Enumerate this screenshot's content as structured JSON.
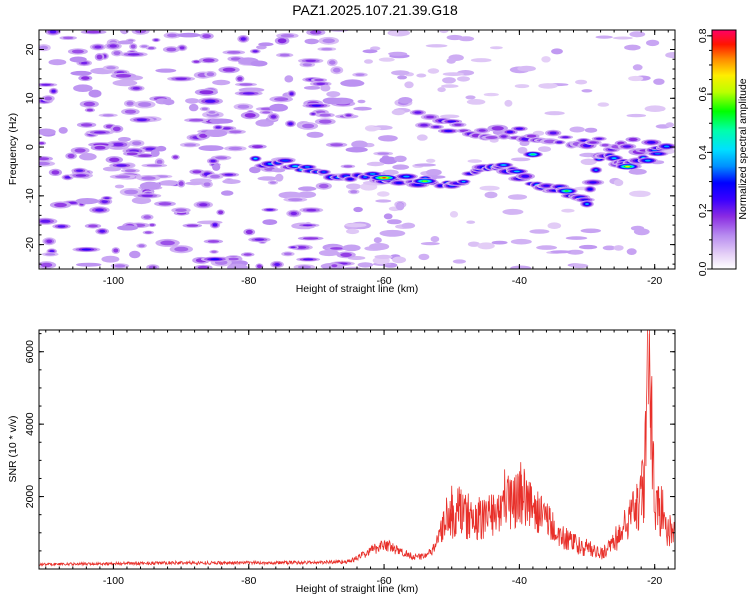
{
  "title": "PAZ1.2025.107.21.39.G18",
  "chart_data": [
    {
      "type": "heatmap",
      "xlabel": "Height of straight line (km)",
      "ylabel": "Frequency (Hz)",
      "xlim": [
        -111,
        -17
      ],
      "ylim": [
        -25,
        24
      ],
      "xticks": [
        -100,
        -80,
        -60,
        -40,
        -20
      ],
      "yticks": [
        -20,
        -10,
        0,
        10,
        20
      ],
      "colorbar": {
        "label": "Normalized spectral amplitude",
        "range": [
          0,
          0.82
        ],
        "ticks": [
          0.0,
          0.2,
          0.4,
          0.6,
          0.8
        ],
        "tick_labels": [
          "0.0",
          "0.2",
          "0.4",
          "0.6",
          "0.8"
        ],
        "colors": [
          "#ffffff",
          "#e6d2f7",
          "#b88cf0",
          "#8a2be2",
          "#4b00ff",
          "#0000ff",
          "#00bfff",
          "#00ffcc",
          "#00ff00",
          "#ccff00",
          "#ffff00",
          "#ff8800",
          "#ff0000",
          "#ff0066"
        ]
      },
      "ridge": {
        "description_points": [
          [
            -79,
            -3
          ],
          [
            -74,
            -3.5
          ],
          [
            -70,
            -5
          ],
          [
            -65,
            -6
          ],
          [
            -60,
            -6.3
          ],
          [
            -55,
            -7
          ],
          [
            -50,
            -7.3
          ],
          [
            -46,
            -5
          ],
          [
            -43,
            -4
          ],
          [
            -40,
            -6
          ],
          [
            -36,
            -8
          ],
          [
            -33,
            -9
          ],
          [
            -30,
            -11
          ],
          [
            -28,
            -2
          ],
          [
            -25,
            -3
          ],
          [
            -23,
            -4
          ],
          [
            -20,
            -1
          ],
          [
            -18,
            0
          ]
        ],
        "upper_branch": [
          [
            -55,
            6
          ],
          [
            -50,
            4
          ],
          [
            -45,
            3
          ],
          [
            -40,
            3
          ],
          [
            -35,
            2
          ],
          [
            -30,
            1
          ],
          [
            -25,
            0.5
          ],
          [
            -20,
            0
          ]
        ],
        "peak_points": [
          [
            -60,
            -6.3
          ],
          [
            -54,
            -7
          ],
          [
            -24,
            -4
          ],
          [
            -33,
            -9
          ],
          [
            -38,
            -1.5
          ]
        ]
      },
      "noise_region": [
        -111,
        -65
      ]
    },
    {
      "type": "line",
      "xlabel": "Height of straight line (km)",
      "ylabel": "SNR (10 * v/v)",
      "xlim": [
        -111,
        -17
      ],
      "ylim": [
        0,
        6600
      ],
      "xticks": [
        -100,
        -80,
        -60,
        -40,
        -20
      ],
      "yticks": [
        2000,
        4000,
        6000
      ],
      "color": "#e8302a",
      "envelope": [
        [
          -111,
          130
        ],
        [
          -100,
          150
        ],
        [
          -90,
          170
        ],
        [
          -80,
          170
        ],
        [
          -70,
          180
        ],
        [
          -65,
          210
        ],
        [
          -62,
          500
        ],
        [
          -60,
          700
        ],
        [
          -58,
          500
        ],
        [
          -55,
          320
        ],
        [
          -53,
          450
        ],
        [
          -51,
          1200
        ],
        [
          -49,
          1600
        ],
        [
          -47,
          1300
        ],
        [
          -45,
          1400
        ],
        [
          -43,
          1700
        ],
        [
          -41,
          1900
        ],
        [
          -39.5,
          2100
        ],
        [
          -38,
          1700
        ],
        [
          -36,
          1300
        ],
        [
          -34,
          900
        ],
        [
          -32,
          700
        ],
        [
          -30,
          520
        ],
        [
          -28,
          420
        ],
        [
          -26,
          700
        ],
        [
          -24,
          1300
        ],
        [
          -22.5,
          1700
        ],
        [
          -21.5,
          2300
        ],
        [
          -21,
          5200
        ],
        [
          -20.8,
          6500
        ],
        [
          -20.5,
          4200
        ],
        [
          -20,
          1800
        ],
        [
          -19,
          1500
        ],
        [
          -18,
          1000
        ],
        [
          -17,
          900
        ]
      ],
      "notable_peaks": [
        [
          -20.8,
          6500
        ],
        [
          -39.8,
          2950
        ],
        [
          -21.8,
          2550
        ],
        [
          -50,
          2300
        ]
      ]
    }
  ]
}
